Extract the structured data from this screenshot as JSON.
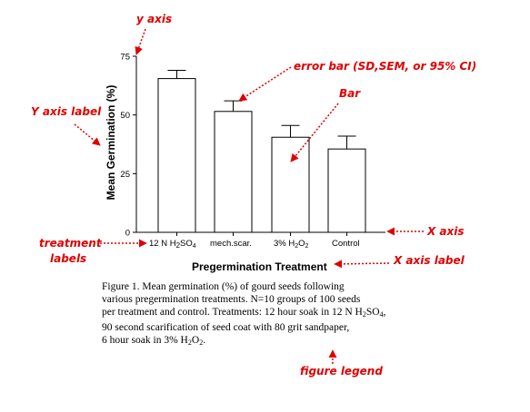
{
  "chart_data": {
    "type": "bar",
    "categories": [
      "12 N H2SO4",
      "mech.scar.",
      "3% H2O2",
      "Control"
    ],
    "values": [
      65.5,
      51.5,
      40.5,
      35.5
    ],
    "error": [
      3.5,
      4.5,
      5.0,
      5.5
    ],
    "title": "",
    "xlabel": "Pregermination Treatment",
    "ylabel": "Mean Germination (%)",
    "ylim": [
      0,
      75
    ],
    "yticks": [
      0,
      25,
      50,
      75
    ],
    "grid": false
  },
  "tick_labels": {
    "cat0_main": "12 N H",
    "cat0_sub1": "2",
    "cat0_mid": "SO",
    "cat0_sub2": "4",
    "cat2_main": "3% H",
    "cat2_sub1": "2",
    "cat2_mid": "O",
    "cat2_sub2": "2"
  },
  "annotations": {
    "y_axis": "y axis",
    "error_bar": "error bar (SD,SEM, or 95% CI)",
    "bar": "Bar",
    "y_axis_label": "Y axis label",
    "x_axis": "X axis",
    "treatment_line1": "treatment",
    "treatment_line2": "labels",
    "x_axis_label": "X axis label",
    "figure_legend": "figure legend"
  },
  "legend": {
    "line1": "Figure 1. Mean germination (%) of gourd seeds following",
    "line2": "various pregermination treatments. N=10 groups of 100 seeds",
    "line3_a": "per treatment and control. Treatments: 12 hour soak in 12 N H",
    "line3_sub1": "2",
    "line3_b": "SO",
    "line3_sub2": "4",
    "line3_c": ",",
    "line4": "90 second scarification of seed coat with 80 grit sandpaper,",
    "line5_a": "6 hour soak in 3% H",
    "line5_sub1": "2",
    "line5_b": "O",
    "line5_sub2": "2",
    "line5_c": "."
  },
  "colors": {
    "annotation": "#e00000",
    "bar_fill": "#ffffff",
    "bar_stroke": "#000000"
  }
}
